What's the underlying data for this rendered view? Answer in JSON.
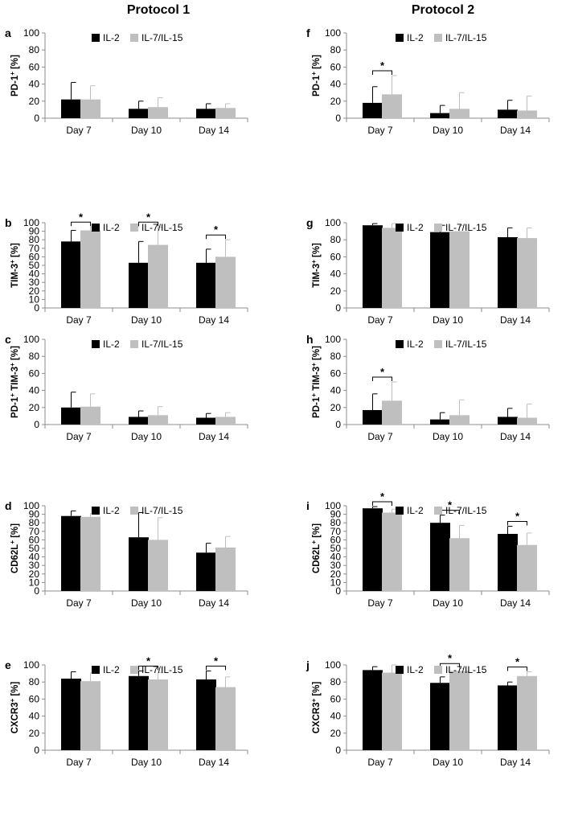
{
  "columns": [
    {
      "title": "Protocol 1",
      "panels": [
        "a",
        "b",
        "c",
        "d",
        "e"
      ]
    },
    {
      "title": "Protocol 2",
      "panels": [
        "f",
        "g",
        "h",
        "i",
        "j"
      ]
    }
  ],
  "legend": {
    "series": [
      {
        "name": "IL-2",
        "color": "#000000"
      },
      {
        "name": "IL-7/IL-15",
        "color": "#bfbfbf"
      }
    ]
  },
  "chart_data": [
    {
      "panel": "a",
      "type": "bar",
      "ylabel": "PD-1+ [%]",
      "ylabel_parts": [
        {
          "t": "PD-1"
        },
        {
          "t": "+",
          "sup": true
        },
        {
          "t": " [%]"
        }
      ],
      "categories": [
        "Day 7",
        "Day 10",
        "Day 14"
      ],
      "ylim": [
        0,
        100
      ],
      "yticks": [
        0,
        20,
        40,
        60,
        80,
        100
      ],
      "legend": "top",
      "series": [
        {
          "name": "IL-2",
          "values": [
            22,
            11,
            11
          ],
          "errors": [
            20,
            9,
            6
          ]
        },
        {
          "name": "IL-7/IL-15",
          "values": [
            22,
            13,
            12
          ],
          "errors": [
            16,
            11,
            5
          ]
        }
      ],
      "significance": []
    },
    {
      "panel": "b",
      "type": "bar",
      "ylabel": "TIM-3+ [%]",
      "ylabel_parts": [
        {
          "t": "TIM-3"
        },
        {
          "t": "+",
          "sup": true
        },
        {
          "t": " [%]"
        }
      ],
      "categories": [
        "Day 7",
        "Day 10",
        "Day 14"
      ],
      "ylim": [
        0,
        100
      ],
      "yticks": [
        0,
        10,
        20,
        30,
        40,
        50,
        60,
        70,
        80,
        90,
        100
      ],
      "legend": "top",
      "series": [
        {
          "name": "IL-2",
          "values": [
            78,
            53,
            53
          ],
          "errors": [
            13,
            25,
            16
          ]
        },
        {
          "name": "IL-7/IL-15",
          "values": [
            91,
            74,
            60
          ],
          "errors": [
            4,
            21,
            20
          ]
        }
      ],
      "significance": [
        {
          "category": 0,
          "label": "*"
        },
        {
          "category": 1,
          "label": "*"
        },
        {
          "category": 2,
          "label": "*"
        }
      ]
    },
    {
      "panel": "c",
      "type": "bar",
      "ylabel": "PD-1+ TIM-3+ [%]",
      "ylabel_parts": [
        {
          "t": "PD-1"
        },
        {
          "t": "+",
          "sup": true
        },
        {
          "t": " TIM-3"
        },
        {
          "t": "+",
          "sup": true
        },
        {
          "t": " [%]"
        }
      ],
      "categories": [
        "Day 7",
        "Day 10",
        "Day 14"
      ],
      "ylim": [
        0,
        100
      ],
      "yticks": [
        0,
        20,
        40,
        60,
        80,
        100
      ],
      "legend": "top",
      "series": [
        {
          "name": "IL-2",
          "values": [
            20,
            9,
            8
          ],
          "errors": [
            18,
            7,
            5
          ]
        },
        {
          "name": "IL-7/IL-15",
          "values": [
            21,
            11,
            9
          ],
          "errors": [
            15,
            10,
            5
          ]
        }
      ],
      "significance": []
    },
    {
      "panel": "d",
      "type": "bar",
      "ylabel": "CD62L+ [%]",
      "ylabel_parts": [
        {
          "t": "CD62L"
        },
        {
          "t": "+",
          "sup": true
        },
        {
          "t": " [%]"
        }
      ],
      "categories": [
        "Day 7",
        "Day 10",
        "Day 14"
      ],
      "ylim": [
        0,
        100
      ],
      "yticks": [
        0,
        10,
        20,
        30,
        40,
        50,
        60,
        70,
        80,
        90,
        100
      ],
      "legend": "top",
      "series": [
        {
          "name": "IL-2",
          "values": [
            88,
            63,
            45
          ],
          "errors": [
            6,
            29,
            11
          ]
        },
        {
          "name": "IL-7/IL-15",
          "values": [
            87,
            60,
            51
          ],
          "errors": [
            4,
            26,
            13
          ]
        }
      ],
      "significance": []
    },
    {
      "panel": "e",
      "type": "bar",
      "ylabel": "CXCR3+ [%]",
      "ylabel_parts": [
        {
          "t": "CXCR3"
        },
        {
          "t": "+",
          "sup": true
        },
        {
          "t": " [%]"
        }
      ],
      "categories": [
        "Day 7",
        "Day 10",
        "Day 14"
      ],
      "ylim": [
        0,
        100
      ],
      "yticks": [
        0,
        20,
        40,
        60,
        80,
        100
      ],
      "legend": "top",
      "series": [
        {
          "name": "IL-2",
          "values": [
            84,
            87,
            83
          ],
          "errors": [
            8,
            6,
            10
          ]
        },
        {
          "name": "IL-7/IL-15",
          "values": [
            81,
            83,
            74
          ],
          "errors": [
            10,
            8,
            12
          ]
        }
      ],
      "significance": [
        {
          "category": 1,
          "label": "*"
        },
        {
          "category": 2,
          "label": "*"
        }
      ]
    },
    {
      "panel": "f",
      "type": "bar",
      "ylabel": "PD-1+ [%]",
      "ylabel_parts": [
        {
          "t": "PD-1"
        },
        {
          "t": "+",
          "sup": true
        },
        {
          "t": " [%]"
        }
      ],
      "categories": [
        "Day 7",
        "Day 10",
        "Day 14"
      ],
      "ylim": [
        0,
        100
      ],
      "yticks": [
        0,
        20,
        40,
        60,
        80,
        100
      ],
      "legend": "top",
      "series": [
        {
          "name": "IL-2",
          "values": [
            18,
            6,
            10
          ],
          "errors": [
            19,
            9,
            11
          ]
        },
        {
          "name": "IL-7/IL-15",
          "values": [
            28,
            11,
            9
          ],
          "errors": [
            22,
            19,
            17
          ]
        }
      ],
      "significance": [
        {
          "category": 0,
          "label": "*"
        }
      ]
    },
    {
      "panel": "g",
      "type": "bar",
      "ylabel": "TIM-3+ [%]",
      "ylabel_parts": [
        {
          "t": "TIM-3"
        },
        {
          "t": "+",
          "sup": true
        },
        {
          "t": " [%]"
        }
      ],
      "categories": [
        "Day 7",
        "Day 10",
        "Day 14"
      ],
      "ylim": [
        0,
        100
      ],
      "yticks": [
        0,
        20,
        40,
        60,
        80,
        100
      ],
      "legend": "top",
      "series": [
        {
          "name": "IL-2",
          "values": [
            97,
            89,
            83
          ],
          "errors": [
            2,
            8,
            11
          ]
        },
        {
          "name": "IL-7/IL-15",
          "values": [
            94,
            90,
            82
          ],
          "errors": [
            5,
            7,
            12
          ]
        }
      ],
      "significance": []
    },
    {
      "panel": "h",
      "type": "bar",
      "ylabel": "PD-1+ TIM-3+ [%]",
      "ylabel_parts": [
        {
          "t": "PD-1"
        },
        {
          "t": "+",
          "sup": true
        },
        {
          "t": " TIM-3"
        },
        {
          "t": "+",
          "sup": true
        },
        {
          "t": " [%]"
        }
      ],
      "categories": [
        "Day 7",
        "Day 10",
        "Day 14"
      ],
      "ylim": [
        0,
        100
      ],
      "yticks": [
        0,
        20,
        40,
        60,
        80,
        100
      ],
      "legend": "top",
      "series": [
        {
          "name": "IL-2",
          "values": [
            17,
            6,
            9
          ],
          "errors": [
            19,
            8,
            10
          ]
        },
        {
          "name": "IL-7/IL-15",
          "values": [
            28,
            11,
            8
          ],
          "errors": [
            22,
            18,
            16
          ]
        }
      ],
      "significance": [
        {
          "category": 0,
          "label": "*"
        }
      ]
    },
    {
      "panel": "i",
      "type": "bar",
      "ylabel": "CD62L+ [%]",
      "ylabel_parts": [
        {
          "t": "CD62L"
        },
        {
          "t": "+",
          "sup": true
        },
        {
          "t": " [%]"
        }
      ],
      "categories": [
        "Day 7",
        "Day 10",
        "Day 14"
      ],
      "ylim": [
        0,
        100
      ],
      "yticks": [
        0,
        10,
        20,
        30,
        40,
        50,
        60,
        70,
        80,
        90,
        100
      ],
      "legend": "top",
      "series": [
        {
          "name": "IL-2",
          "values": [
            97,
            80,
            67
          ],
          "errors": [
            2,
            9,
            9
          ]
        },
        {
          "name": "IL-7/IL-15",
          "values": [
            92,
            62,
            54
          ],
          "errors": [
            4,
            15,
            14
          ]
        }
      ],
      "significance": [
        {
          "category": 0,
          "label": "*"
        },
        {
          "category": 1,
          "label": "*"
        },
        {
          "category": 2,
          "label": "*"
        }
      ]
    },
    {
      "panel": "j",
      "type": "bar",
      "ylabel": "CXCR3+ [%]",
      "ylabel_parts": [
        {
          "t": "CXCR3"
        },
        {
          "t": "+",
          "sup": true
        },
        {
          "t": " [%]"
        }
      ],
      "categories": [
        "Day 7",
        "Day 10",
        "Day 14"
      ],
      "ylim": [
        0,
        100
      ],
      "yticks": [
        0,
        20,
        40,
        60,
        80,
        100
      ],
      "legend": "top",
      "series": [
        {
          "name": "IL-2",
          "values": [
            94,
            79,
            76
          ],
          "errors": [
            4,
            7,
            4
          ]
        },
        {
          "name": "IL-7/IL-15",
          "values": [
            91,
            93,
            87
          ],
          "errors": [
            17,
            3,
            5
          ]
        }
      ],
      "significance": [
        {
          "category": 1,
          "label": "*"
        },
        {
          "category": 2,
          "label": "*"
        }
      ]
    }
  ]
}
